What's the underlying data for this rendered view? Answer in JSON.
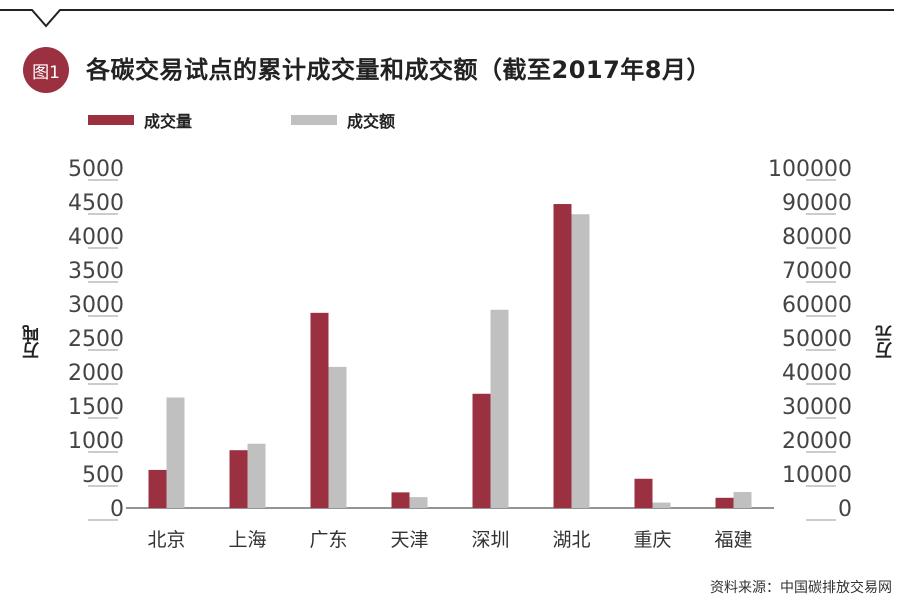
{
  "figure": {
    "badge": "图1",
    "title": "各碳交易试点的累计成交量和成交额（截至2017年8月）",
    "source": "资料来源：中国碳排放交易网"
  },
  "chart_data": {
    "type": "bar",
    "categories": [
      "北京",
      "上海",
      "广东",
      "天津",
      "深圳",
      "湖北",
      "重庆",
      "福建"
    ],
    "series": [
      {
        "name": "成交量",
        "axis": "left",
        "color": "#9b3140",
        "values": [
          560,
          850,
          2870,
          230,
          1680,
          4470,
          430,
          150
        ]
      },
      {
        "name": "成交额",
        "axis": "right",
        "color": "#c0c0c0",
        "values": [
          32500,
          18900,
          41500,
          3200,
          58300,
          86400,
          1600,
          4700
        ]
      }
    ],
    "ylabel_left": "万吨",
    "ylabel_right": "万元",
    "ylim_left": [
      0,
      5000
    ],
    "ylim_right": [
      0,
      100000
    ],
    "yticks_left": [
      "0",
      "500",
      "1000",
      "1500",
      "2000",
      "2500",
      "3000",
      "3500",
      "4000",
      "4500",
      "5000"
    ],
    "yticks_right": [
      "0",
      "10000",
      "20000",
      "30000",
      "40000",
      "50000",
      "60000",
      "70000",
      "80000",
      "90000",
      "100000"
    ],
    "legend_position": "top-left",
    "grid": false
  }
}
